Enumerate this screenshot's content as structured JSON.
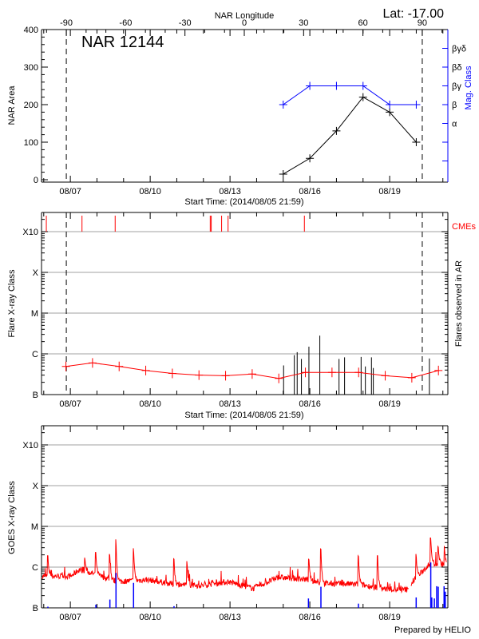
{
  "header": {
    "top_axis_title": "NAR Longitude",
    "lat_label": "Lat: -17.00"
  },
  "footer": {
    "credit": "Prepared by HELIO"
  },
  "colors": {
    "red": "#ff0000",
    "blue": "#0000ff",
    "grid": "#a0a0a0",
    "black": "#000000"
  },
  "chart_data": [
    {
      "type": "line",
      "title": "NAR 12144",
      "ylabel": "NAR Area",
      "y2label": "Mag. Class",
      "xlabel": "Start Time: (2014/08/05 21:59)",
      "xlim": [
        "2014-08-05 21:59",
        "2014-08-21 07:00"
      ],
      "ylim": [
        0,
        400
      ],
      "y_ticks": [
        "0",
        "100",
        "200",
        "300",
        "400"
      ],
      "x_tick_labels": [
        "08/07",
        "08/10",
        "08/13",
        "08/16",
        "08/19"
      ],
      "top_axis_ticks": [
        "-90",
        "-60",
        "-30",
        "0",
        "30",
        "60",
        "90"
      ],
      "limb_longitudes": [
        -90,
        90
      ],
      "y2_ticks": [
        {
          "area_level": 50,
          "label": ""
        },
        {
          "area_level": 100,
          "label": ""
        },
        {
          "area_level": 150,
          "label": "α"
        },
        {
          "area_level": 200,
          "label": "β"
        },
        {
          "area_level": 250,
          "label": "βγ"
        },
        {
          "area_level": 300,
          "label": "βδ"
        },
        {
          "area_level": 350,
          "label": "βγδ"
        }
      ],
      "series": [
        {
          "x": [
            "2014-08-15 00:00",
            "2014-08-16 00:00",
            "2014-08-17 00:00",
            "2014-08-18 00:00",
            "2014-08-19 00:00",
            "2014-08-20 00:00"
          ],
          "values": [
            15,
            57,
            130,
            220,
            180,
            100
          ],
          "color": "#000000"
        },
        {
          "x": [
            "2014-08-15 00:00",
            "2014-08-16 00:00",
            "2014-08-17 00:00",
            "2014-08-18 00:00",
            "2014-08-19 00:00",
            "2014-08-20 00:00"
          ],
          "mag_class": [
            "β",
            "βγ",
            "βγ",
            "βγ",
            "β",
            "β"
          ],
          "color": "#0000ff"
        }
      ]
    },
    {
      "type": "line",
      "ylabel": "Flare X-ray Class",
      "y2label": "Flares observed in AR",
      "cme_label": "CMEs",
      "xlabel": "Start Time: (2014/08/05 21:59)",
      "y_scale": "log",
      "y_ticks": [
        "B",
        "C",
        "M",
        "X",
        "X10"
      ],
      "x_tick_labels": [
        "08/07",
        "08/10",
        "08/13",
        "08/16",
        "08/19"
      ],
      "grid": true,
      "average_flux": {
        "x": [
          "2014-08-06 20:00",
          "2014-08-07 20:00",
          "2014-08-08 20:00",
          "2014-08-09 20:00",
          "2014-08-10 20:00",
          "2014-08-11 20:00",
          "2014-08-12 20:00",
          "2014-08-13 20:00",
          "2014-08-14 20:00",
          "2014-08-15 20:00",
          "2014-08-16 20:00",
          "2014-08-17 20:00",
          "2014-08-18 20:00",
          "2014-08-19 20:00",
          "2014-08-20 20:00"
        ],
        "values": [
          4.9e-07,
          6e-07,
          4.9e-07,
          3.9e-07,
          3.3e-07,
          3e-07,
          2.9e-07,
          3.2e-07,
          2.5e-07,
          3.5e-07,
          3.5e-07,
          3.5e-07,
          2.9e-07,
          2.6e-07,
          3.9e-07
        ],
        "color": "#ff0000"
      },
      "flares": {
        "x": [
          "2014-08-15 00:20",
          "2014-08-15 10:00",
          "2014-08-15 12:35",
          "2014-08-15 16:25",
          "2014-08-15 23:10",
          "2014-08-16 09:00",
          "2014-08-17 02:20",
          "2014-08-17 07:20",
          "2014-08-17 22:15",
          "2014-08-18 02:05",
          "2014-08-18 07:35",
          "2014-08-18 09:15",
          "2014-08-20 11:50"
        ],
        "values": [
          5.2e-07,
          9.3e-07,
          1.1e-06,
          7.5e-07,
          1.5e-06,
          2.8e-06,
          7.5e-07,
          8.2e-07,
          8.4e-07,
          4.9e-07,
          8.2e-07,
          4.5e-07,
          7.7e-07
        ],
        "color": "#000000"
      },
      "cmes": {
        "x": [
          "2014-08-06 02:20",
          "2014-08-07 10:30",
          "2014-08-08 16:25",
          "2014-08-12 06:10",
          "2014-08-12 07:05",
          "2014-08-12 16:25",
          "2014-08-12 22:15",
          "2014-08-15 19:05"
        ],
        "color": "#ff0000"
      }
    },
    {
      "type": "line",
      "ylabel": "GOES X-ray Class",
      "y_scale": "log",
      "y_ticks": [
        "B",
        "C",
        "M",
        "X",
        "X10"
      ],
      "x_tick_labels": [
        "08/07",
        "08/10",
        "08/13",
        "08/16",
        "08/19"
      ],
      "grid": true,
      "goes_background": {
        "x": [
          "2014-08-05 22:00",
          "2014-08-07 00:40",
          "2014-08-07 08:00",
          "2014-08-07 20:00",
          "2014-08-08 18:25",
          "2014-08-09 22:15",
          "2014-08-10 20:35",
          "2014-08-11 21:45",
          "2014-08-12 22:40",
          "2014-08-13 21:00",
          "2014-08-14 19:20",
          "2014-08-15 20:30",
          "2014-08-16 10:30",
          "2014-08-17 19:50",
          "2014-08-18 23:40",
          "2014-08-19 16:55",
          "2014-08-19 19:20",
          "2014-08-20 12:10",
          "2014-08-21 04:40"
        ],
        "values": [
          6e-07,
          6e-07,
          8.7e-07,
          7e-07,
          4.4e-07,
          4.9e-07,
          3.8e-07,
          3.5e-07,
          4.4e-07,
          3e-07,
          5.6e-07,
          5e-07,
          4e-07,
          3.8e-07,
          2.8e-07,
          2.8e-07,
          4e-07,
          1.2e-06,
          1.2e-06
        ],
        "data_gap": [
          "2014-08-19 16:55",
          "2014-08-19 19:20"
        ],
        "color": "#ff0000"
      },
      "goes_peaks": {
        "x": [
          "2014-08-06 03:45",
          "2014-08-07 13:05",
          "2014-08-07 23:00",
          "2014-08-08 11:30",
          "2014-08-08 17:10",
          "2014-08-09 09:00",
          "2014-08-10 21:30",
          "2014-08-11 09:15",
          "2014-08-15 23:10",
          "2014-08-16 10:00",
          "2014-08-17 19:50",
          "2014-08-18 13:10",
          "2014-08-19 23:55",
          "2014-08-20 13:05",
          "2014-08-20 19:50",
          "2014-08-21 01:20"
        ],
        "values": [
          1.9e-06,
          1.7e-06,
          2.3e-06,
          2.1e-06,
          4.8e-06,
          2.9e-06,
          1.6e-06,
          1.4e-06,
          1.6e-06,
          2.8e-06,
          1.9e-06,
          1.9e-06,
          2.1e-06,
          5.2e-06,
          3.2e-06,
          3.3e-06
        ]
      },
      "goes_short_channel": {
        "x": [
          "2014-08-06 03:45",
          "2014-08-07 23:00",
          "2014-08-08 11:40",
          "2014-08-08 17:10",
          "2014-08-09 09:00",
          "2014-08-10 21:30",
          "2014-08-15 22:45",
          "2014-08-16 10:00",
          "2014-08-17 19:50",
          "2014-08-19 23:55",
          "2014-08-20 13:05",
          "2014-08-20 14:00",
          "2014-08-20 16:20",
          "2014-08-20 18:25",
          "2014-08-20 19:50",
          "2014-08-21 01:05",
          "2014-08-21 02:10"
        ],
        "values": [
          1.07e-07,
          1.2e-07,
          1.6e-07,
          7.2e-07,
          4.1e-07,
          1.1e-07,
          1.7e-07,
          3.3e-07,
          1.27e-07,
          1.8e-07,
          1.3e-06,
          1.8e-07,
          1.7e-07,
          3.4e-07,
          3.3e-07,
          3.4e-07,
          2.5e-07
        ],
        "color": "#0000ff"
      }
    }
  ]
}
